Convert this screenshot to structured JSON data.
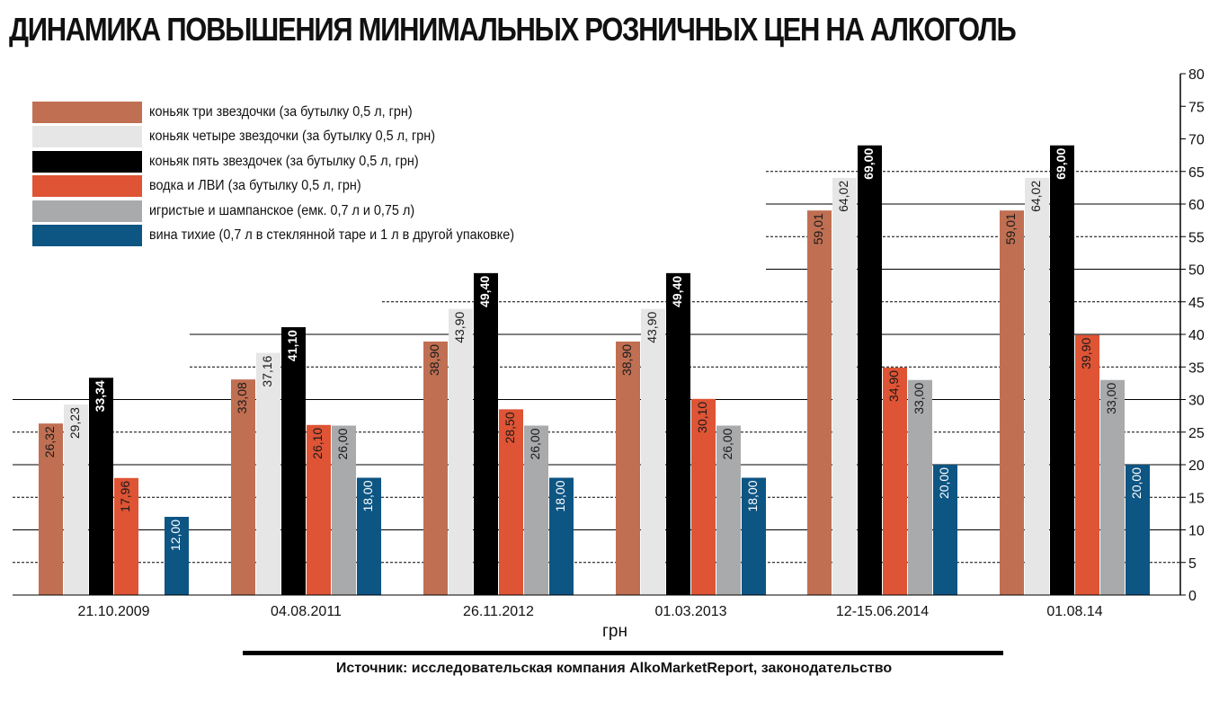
{
  "chart_data": {
    "type": "bar",
    "title": "ДИНАМИКА ПОВЫШЕНИЯ МИНИМАЛЬНЫХ РОЗНИЧНЫХ ЦЕН НА АЛКОГОЛЬ",
    "xlabel": "грн",
    "ylabel": "",
    "ylim": [
      0,
      80
    ],
    "yticks": [
      "0",
      "5",
      "10",
      "15",
      "20",
      "25",
      "30",
      "35",
      "40",
      "45",
      "50",
      "55",
      "60",
      "65",
      "70",
      "75",
      "80"
    ],
    "grid": true,
    "legend_position": "top-left",
    "categories": [
      "21.10.2009",
      "04.08.2011",
      "26.11.2012",
      "01.03.2013",
      "12-15.06.2014",
      "01.08.14"
    ],
    "series": [
      {
        "name": "коньяк три звездочки (за бутылку 0,5 л, грн)",
        "color": "#c06f52",
        "values": [
          26.32,
          33.08,
          38.9,
          38.9,
          59.01,
          59.01
        ],
        "labels": [
          "26,32",
          "33,08",
          "38,90",
          "38,90",
          "59,01",
          "59,01"
        ]
      },
      {
        "name": "коньяк четыре звездочки (за бутылку 0,5 л, грн)",
        "color": "#e6e6e6",
        "values": [
          29.23,
          37.16,
          43.9,
          43.9,
          64.02,
          64.02
        ],
        "labels": [
          "29,23",
          "37,16",
          "43,90",
          "43,90",
          "64,02",
          "64,02"
        ]
      },
      {
        "name": "коньяк пять звездочек (за бутылку 0,5 л, грн)",
        "color": "#000000",
        "values": [
          33.34,
          41.1,
          49.4,
          49.4,
          69.0,
          69.0
        ],
        "labels": [
          "33,34",
          "41,10",
          "49,40",
          "49,40",
          "69,00",
          "69,00"
        ]
      },
      {
        "name": "водка и ЛВИ (за бутылку 0,5 л, грн)",
        "color": "#de5435",
        "values": [
          17.96,
          26.1,
          28.5,
          30.1,
          34.9,
          39.9
        ],
        "labels": [
          "17,96",
          "26,10",
          "28,50",
          "30,10",
          "34,90",
          "39,90"
        ]
      },
      {
        "name": "игристые и шампанское (емк. 0,7 л и 0,75 л)",
        "color": "#a9aaac",
        "values": [
          null,
          26.0,
          26.0,
          26.0,
          33.0,
          33.0
        ],
        "labels": [
          null,
          "26,00",
          "26,00",
          "26,00",
          "33,00",
          "33,00"
        ]
      },
      {
        "name": "вина тихие (0,7 л в стеклянной таре и 1 л в другой упаковке)",
        "color": "#0d5583",
        "values": [
          12.0,
          18.0,
          18.0,
          18.0,
          20.0,
          20.0
        ],
        "labels": [
          "12,00",
          "18,00",
          "18,00",
          "18,00",
          "20,00",
          "20,00"
        ]
      }
    ]
  },
  "source": "Источник: исследовательская компания AlkoMarketReport, законодательство"
}
